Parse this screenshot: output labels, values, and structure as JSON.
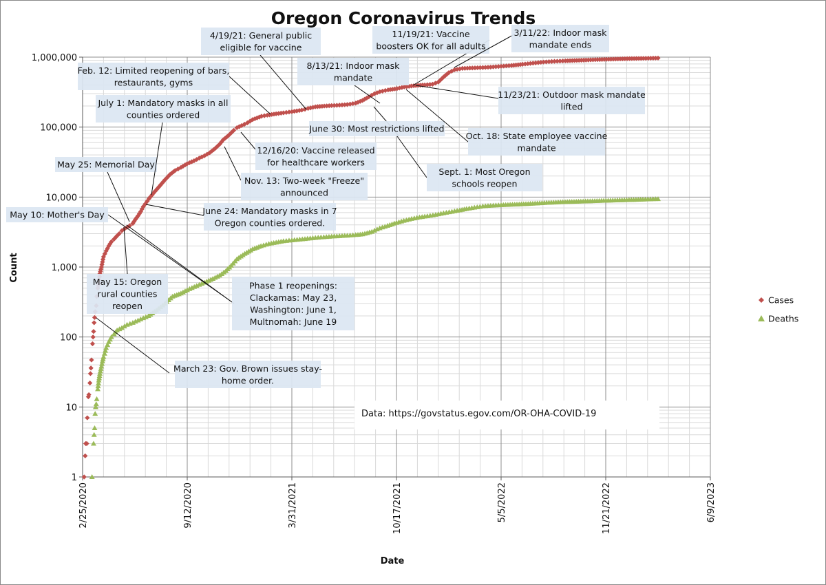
{
  "chart_data": {
    "type": "scatter",
    "title": "Oregon Coronavirus Trends",
    "xlabel": "Date",
    "ylabel": "Count",
    "yscale": "log",
    "ylim": [
      1,
      1000000
    ],
    "xlim": [
      "2020-02-25",
      "2023-06-09"
    ],
    "y_ticks": [
      "1",
      "10",
      "100",
      "1,000",
      "10,000",
      "100,000",
      "1,000,000"
    ],
    "x_ticks": [
      "2/25/2020",
      "9/12/2020",
      "3/31/2021",
      "10/17/2021",
      "5/5/2022",
      "11/21/2022",
      "6/9/2023"
    ],
    "grid": "major and minor, both axes",
    "legend_position": "right",
    "series": [
      {
        "name": "Cases",
        "color": "#c0504d",
        "marker": "diamond",
        "points": [
          [
            "2020-02-28",
            1
          ],
          [
            "2020-03-01",
            2
          ],
          [
            "2020-03-02",
            3
          ],
          [
            "2020-03-04",
            3
          ],
          [
            "2020-03-05",
            7
          ],
          [
            "2020-03-07",
            14
          ],
          [
            "2020-03-08",
            15
          ],
          [
            "2020-03-10",
            22
          ],
          [
            "2020-03-11",
            30
          ],
          [
            "2020-03-12",
            36
          ],
          [
            "2020-03-13",
            47
          ],
          [
            "2020-03-15",
            80
          ],
          [
            "2020-03-16",
            100
          ],
          [
            "2020-03-17",
            120
          ],
          [
            "2020-03-18",
            160
          ],
          [
            "2020-03-19",
            190
          ],
          [
            "2020-03-20",
            230
          ],
          [
            "2020-03-22",
            280
          ],
          [
            "2020-03-23",
            380
          ],
          [
            "2020-03-25",
            500
          ],
          [
            "2020-03-27",
            600
          ],
          [
            "2020-03-29",
            800
          ],
          [
            "2020-04-01",
            1000
          ],
          [
            "2020-04-05",
            1400
          ],
          [
            "2020-04-10",
            1700
          ],
          [
            "2020-04-15",
            2000
          ],
          [
            "2020-04-20",
            2300
          ],
          [
            "2020-04-25",
            2500
          ],
          [
            "2020-05-01",
            2800
          ],
          [
            "2020-05-05",
            3000
          ],
          [
            "2020-05-10",
            3300
          ],
          [
            "2020-05-15",
            3500
          ],
          [
            "2020-05-20",
            3700
          ],
          [
            "2020-05-25",
            3900
          ],
          [
            "2020-05-31",
            4200
          ],
          [
            "2020-06-05",
            4800
          ],
          [
            "2020-06-10",
            5400
          ],
          [
            "2020-06-15",
            6200
          ],
          [
            "2020-06-20",
            7300
          ],
          [
            "2020-06-24",
            8000
          ],
          [
            "2020-07-01",
            9500
          ],
          [
            "2020-07-10",
            11500
          ],
          [
            "2020-07-20",
            14000
          ],
          [
            "2020-07-31",
            17500
          ],
          [
            "2020-08-10",
            21000
          ],
          [
            "2020-08-20",
            24000
          ],
          [
            "2020-08-31",
            26500
          ],
          [
            "2020-09-12",
            30000
          ],
          [
            "2020-09-25",
            33000
          ],
          [
            "2020-10-05",
            36000
          ],
          [
            "2020-10-15",
            39000
          ],
          [
            "2020-10-25",
            43000
          ],
          [
            "2020-11-05",
            50000
          ],
          [
            "2020-11-13",
            57000
          ],
          [
            "2020-11-20",
            66000
          ],
          [
            "2020-11-30",
            76000
          ],
          [
            "2020-12-10",
            90000
          ],
          [
            "2020-12-16",
            98000
          ],
          [
            "2020-12-25",
            105000
          ],
          [
            "2021-01-05",
            115000
          ],
          [
            "2021-01-15",
            128000
          ],
          [
            "2021-02-01",
            143000
          ],
          [
            "2021-02-12",
            148000
          ],
          [
            "2021-03-01",
            155000
          ],
          [
            "2021-03-15",
            160000
          ],
          [
            "2021-03-31",
            166000
          ],
          [
            "2021-04-19",
            175000
          ],
          [
            "2021-05-01",
            185000
          ],
          [
            "2021-05-15",
            195000
          ],
          [
            "2021-06-01",
            200000
          ],
          [
            "2021-06-15",
            203000
          ],
          [
            "2021-06-30",
            206000
          ],
          [
            "2021-07-15",
            210000
          ],
          [
            "2021-07-31",
            220000
          ],
          [
            "2021-08-13",
            240000
          ],
          [
            "2021-08-25",
            270000
          ],
          [
            "2021-09-05",
            300000
          ],
          [
            "2021-09-15",
            320000
          ],
          [
            "2021-10-01",
            340000
          ],
          [
            "2021-10-18",
            355000
          ],
          [
            "2021-11-01",
            375000
          ],
          [
            "2021-11-19",
            390000
          ],
          [
            "2021-11-23",
            393000
          ],
          [
            "2021-12-10",
            400000
          ],
          [
            "2021-12-25",
            410000
          ],
          [
            "2022-01-05",
            440000
          ],
          [
            "2022-01-15",
            520000
          ],
          [
            "2022-01-25",
            600000
          ],
          [
            "2022-02-05",
            660000
          ],
          [
            "2022-02-20",
            690000
          ],
          [
            "2022-03-11",
            700000
          ],
          [
            "2022-03-31",
            710000
          ],
          [
            "2022-04-15",
            720000
          ],
          [
            "2022-05-05",
            740000
          ],
          [
            "2022-05-25",
            760000
          ],
          [
            "2022-06-15",
            790000
          ],
          [
            "2022-07-05",
            820000
          ],
          [
            "2022-07-25",
            850000
          ],
          [
            "2022-08-15",
            870000
          ],
          [
            "2022-09-05",
            885000
          ],
          [
            "2022-10-01",
            900000
          ],
          [
            "2022-11-01",
            920000
          ],
          [
            "2022-12-01",
            935000
          ],
          [
            "2023-01-01",
            950000
          ],
          [
            "2023-02-01",
            960000
          ],
          [
            "2023-03-01",
            970000
          ]
        ]
      },
      {
        "name": "Deaths",
        "color": "#9bbb59",
        "marker": "triangle",
        "points": [
          [
            "2020-03-14",
            1
          ],
          [
            "2020-03-17",
            3
          ],
          [
            "2020-03-18",
            4
          ],
          [
            "2020-03-19",
            5
          ],
          [
            "2020-03-20",
            8
          ],
          [
            "2020-03-21",
            10
          ],
          [
            "2020-03-22",
            11
          ],
          [
            "2020-03-23",
            13
          ],
          [
            "2020-03-25",
            18
          ],
          [
            "2020-03-27",
            24
          ],
          [
            "2020-03-29",
            30
          ],
          [
            "2020-04-01",
            38
          ],
          [
            "2020-04-03",
            45
          ],
          [
            "2020-04-05",
            52
          ],
          [
            "2020-04-07",
            58
          ],
          [
            "2020-04-10",
            70
          ],
          [
            "2020-04-15",
            85
          ],
          [
            "2020-04-20",
            100
          ],
          [
            "2020-04-25",
            110
          ],
          [
            "2020-05-01",
            125
          ],
          [
            "2020-05-10",
            135
          ],
          [
            "2020-05-20",
            150
          ],
          [
            "2020-05-31",
            160
          ],
          [
            "2020-06-15",
            180
          ],
          [
            "2020-06-30",
            200
          ],
          [
            "2020-07-15",
            240
          ],
          [
            "2020-07-31",
            300
          ],
          [
            "2020-08-15",
            380
          ],
          [
            "2020-08-31",
            420
          ],
          [
            "2020-09-12",
            470
          ],
          [
            "2020-09-30",
            540
          ],
          [
            "2020-10-15",
            600
          ],
          [
            "2020-10-31",
            680
          ],
          [
            "2020-11-13",
            760
          ],
          [
            "2020-11-25",
            880
          ],
          [
            "2020-12-05",
            1050
          ],
          [
            "2020-12-16",
            1300
          ],
          [
            "2020-12-31",
            1550
          ],
          [
            "2021-01-15",
            1800
          ],
          [
            "2021-01-31",
            2000
          ],
          [
            "2021-02-15",
            2150
          ],
          [
            "2021-03-01",
            2250
          ],
          [
            "2021-03-15",
            2350
          ],
          [
            "2021-03-31",
            2420
          ],
          [
            "2021-04-15",
            2480
          ],
          [
            "2021-04-30",
            2550
          ],
          [
            "2021-05-15",
            2620
          ],
          [
            "2021-05-31",
            2680
          ],
          [
            "2021-06-15",
            2740
          ],
          [
            "2021-06-30",
            2780
          ],
          [
            "2021-07-15",
            2820
          ],
          [
            "2021-07-31",
            2880
          ],
          [
            "2021-08-13",
            2950
          ],
          [
            "2021-08-31",
            3200
          ],
          [
            "2021-09-15",
            3600
          ],
          [
            "2021-09-30",
            3900
          ],
          [
            "2021-10-17",
            4300
          ],
          [
            "2021-10-31",
            4600
          ],
          [
            "2021-11-15",
            4900
          ],
          [
            "2021-11-30",
            5150
          ],
          [
            "2021-12-15",
            5350
          ],
          [
            "2021-12-31",
            5600
          ],
          [
            "2022-01-15",
            5900
          ],
          [
            "2022-01-31",
            6200
          ],
          [
            "2022-02-15",
            6500
          ],
          [
            "2022-02-28",
            6800
          ],
          [
            "2022-03-15",
            7100
          ],
          [
            "2022-03-31",
            7400
          ],
          [
            "2022-04-15",
            7550
          ],
          [
            "2022-05-05",
            7700
          ],
          [
            "2022-05-31",
            7850
          ],
          [
            "2022-06-30",
            8050
          ],
          [
            "2022-07-31",
            8300
          ],
          [
            "2022-08-31",
            8500
          ],
          [
            "2022-09-30",
            8650
          ],
          [
            "2022-10-31",
            8800
          ],
          [
            "2022-11-30",
            8950
          ],
          [
            "2022-12-31",
            9100
          ],
          [
            "2023-01-31",
            9250
          ],
          [
            "2023-03-01",
            9400
          ]
        ]
      }
    ],
    "annotations": [
      {
        "text": "March 23: Gov. Brown issues stay-home order.",
        "lines": [
          "March 23: Gov. Brown issues stay-",
          "home order."
        ],
        "date": "2020-03-23"
      },
      {
        "text": "May 15: Oregon rural counties reopen",
        "lines": [
          "May 15: Oregon",
          "rural counties",
          "reopen"
        ],
        "date": "2020-05-15"
      },
      {
        "text": "May 10: Mother's Day",
        "lines": [
          "May 10: Mother's Day"
        ],
        "date": "2020-05-10"
      },
      {
        "text": "May 25: Memorial Day",
        "lines": [
          "May 25: Memorial Day"
        ],
        "date": "2020-05-25"
      },
      {
        "text": "Phase 1 reopenings: Clackamas: May 23, Washington: June 1, Multnomah: June 19",
        "lines": [
          "Phase 1 reopenings:",
          "Clackamas: May 23,",
          "Washington: June 1,",
          "Multnomah: June 19"
        ],
        "date": "2020-05-23"
      },
      {
        "text": "June 24: Mandatory masks in 7 Oregon counties ordered.",
        "lines": [
          "June 24: Mandatory masks in 7",
          "Oregon counties ordered."
        ],
        "date": "2020-06-24"
      },
      {
        "text": "July 1: Mandatory masks in all counties ordered",
        "lines": [
          "July 1: Mandatory masks in all",
          "counties ordered"
        ],
        "date": "2020-07-01"
      },
      {
        "text": "Feb. 12: Limited reopening of bars, restaurants, gyms",
        "lines": [
          "Feb. 12: Limited reopening of bars,",
          "restaurants, gyms"
        ],
        "date": "2021-02-12"
      },
      {
        "text": "Nov. 13: Two-week \"Freeze\" announced",
        "lines": [
          "Nov. 13: Two-week \"Freeze\"",
          "announced"
        ],
        "date": "2020-11-13"
      },
      {
        "text": "12/16/20: Vaccine released for healthcare workers",
        "lines": [
          "12/16/20: Vaccine released",
          "for healthcare workers"
        ],
        "date": "2020-12-16"
      },
      {
        "text": "4/19/21: General public eligible for vaccine",
        "lines": [
          "4/19/21: General public",
          "eligible for vaccine"
        ],
        "date": "2021-04-19"
      },
      {
        "text": "June 30: Most restrictions lifted",
        "lines": [
          "June 30: Most restrictions lifted"
        ],
        "date": "2021-06-30"
      },
      {
        "text": "8/13/21: Indoor mask mandate",
        "lines": [
          "8/13/21: Indoor mask",
          "mandate"
        ],
        "date": "2021-08-13"
      },
      {
        "text": "Sept. 1: Most Oregon schools reopen",
        "lines": [
          "Sept. 1: Most Oregon",
          "schools reopen"
        ],
        "date": "2021-09-01"
      },
      {
        "text": "Oct. 18: State employee vaccine mandate",
        "lines": [
          "Oct. 18: State employee vaccine",
          "mandate"
        ],
        "date": "2021-10-18"
      },
      {
        "text": "11/19/21: Vaccine boosters OK for all adults",
        "lines": [
          "11/19/21: Vaccine",
          "boosters OK for all adults"
        ],
        "date": "2021-11-19"
      },
      {
        "text": "11/23/21: Outdoor mask mandate lifted",
        "lines": [
          "11/23/21: Outdoor mask mandate",
          "lifted"
        ],
        "date": "2021-11-23"
      },
      {
        "text": "3/11/22: Indoor mask mandate ends",
        "lines": [
          "3/11/22: Indoor mask",
          "mandate ends"
        ],
        "date": "2022-03-11"
      }
    ],
    "source_note": "Data: https://govstatus.egov.com/OR-OHA-COVID-19"
  }
}
